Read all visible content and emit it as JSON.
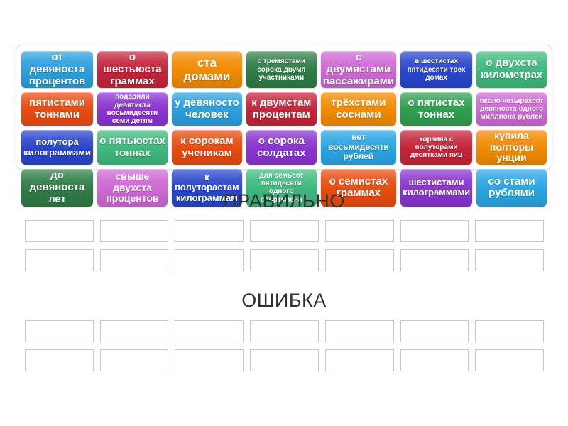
{
  "word_bank": {
    "tiles": [
      {
        "label": "от девяноста процентов",
        "color": "#2b9fdd",
        "size": 15
      },
      {
        "label": "о шестьюста граммах",
        "color": "#c4243a",
        "size": 15
      },
      {
        "label": "ста домами",
        "color": "#f18a01",
        "size": 17
      },
      {
        "label": "с тремястами сорока двумя участниками",
        "color": "#2e7c46",
        "size": 10
      },
      {
        "label": "с двумястами пассажирами",
        "color": "#cd68d3",
        "size": 15
      },
      {
        "label": "в шестистах пятидесяти трех домах",
        "color": "#2945cb",
        "size": 10
      },
      {
        "label": "о двухста километрах",
        "color": "#3eb87d",
        "size": 15
      },
      {
        "label": "пятистами тоннами",
        "color": "#e74b10",
        "size": 15
      },
      {
        "label": "подарили девятиста восьмидесяти семи детям",
        "color": "#8934cf",
        "size": 10
      },
      {
        "label": "у девяносто человек",
        "color": "#2b9fdd",
        "size": 15
      },
      {
        "label": "к двумстам процентам",
        "color": "#c4243a",
        "size": 15
      },
      {
        "label": "трёхстами соснами",
        "color": "#f18a01",
        "size": 15
      },
      {
        "label": "о пятистах тоннах",
        "color": "#2f9e50",
        "size": 15
      },
      {
        "label": "около четырехсот девяноста одного миллиона рублей",
        "color": "#cd68d3",
        "size": 10
      },
      {
        "label": "полутора килограммами",
        "color": "#2945cb",
        "size": 13
      },
      {
        "label": "о пятьюстах тоннах",
        "color": "#3eb87d",
        "size": 15
      },
      {
        "label": "к сорокам ученикам",
        "color": "#e74b10",
        "size": 15
      },
      {
        "label": "о сорока солдатах",
        "color": "#8934cf",
        "size": 15
      },
      {
        "label": "нет восьмидесяти рублей",
        "color": "#2aa5e2",
        "size": 12
      },
      {
        "label": "корзина с полуторами десятками яиц",
        "color": "#c4243a",
        "size": 10
      },
      {
        "label": "купила полторы унции",
        "color": "#f18a01",
        "size": 14
      },
      {
        "label": "до девяноста лет",
        "color": "#2e7c46",
        "size": 15
      },
      {
        "label": "свыше двухста процентов",
        "color": "#cd68d3",
        "size": 14
      },
      {
        "label": "к полуторастам килограммам",
        "color": "#2945cb",
        "size": 13
      },
      {
        "label": "для семьсот пятидесяти одного спортсмена",
        "color": "#3eb87d",
        "size": 10
      },
      {
        "label": "о семистах граммах",
        "color": "#e74b10",
        "size": 15
      },
      {
        "label": "шестистами килограммами",
        "color": "#8934cf",
        "size": 13
      },
      {
        "label": "со стами рублями",
        "color": "#2aa5e2",
        "size": 15
      }
    ]
  },
  "groups": [
    {
      "title": "ПРАВИЛЬНО",
      "slot_count": 14
    },
    {
      "title": "ОШИБКА",
      "slot_count": 14
    }
  ]
}
